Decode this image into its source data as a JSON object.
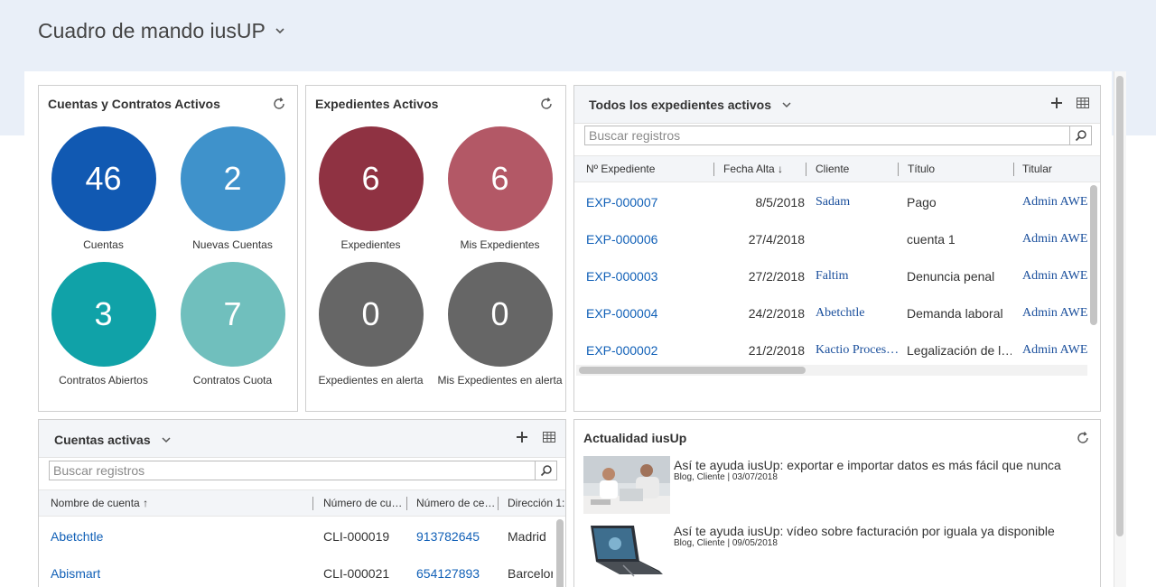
{
  "header": {
    "title": "Cuadro de mando iusUP"
  },
  "colors": {
    "cuentas": "#1159b2",
    "nuevas_cuentas": "#3f92cb",
    "contratos_abiertos": "#10a2a8",
    "contratos_cuota": "#70bfbd",
    "expedientes": "#8f3242",
    "mis_expedientes": "#b35866",
    "alerta": "#666666",
    "link": "#1160b7"
  },
  "cuentas_panel": {
    "title": "Cuentas y Contratos Activos",
    "tiles": [
      {
        "value": "46",
        "label": "Cuentas"
      },
      {
        "value": "2",
        "label": "Nuevas Cuentas"
      },
      {
        "value": "3",
        "label": "Contratos Abiertos"
      },
      {
        "value": "7",
        "label": "Contratos Cuota"
      }
    ]
  },
  "expedientes_panel": {
    "title": "Expedientes Activos",
    "tiles": [
      {
        "value": "6",
        "label": "Expedientes"
      },
      {
        "value": "6",
        "label": "Mis Expedientes"
      },
      {
        "value": "0",
        "label": "Expedientes en alerta"
      },
      {
        "value": "0",
        "label": "Mis Expedientes en alerta"
      }
    ]
  },
  "expedientes_view": {
    "title": "Todos los expedientes activos",
    "search_placeholder": "Buscar registros",
    "columns": [
      "Nº Expediente",
      "Fecha Alta",
      "Cliente",
      "Título",
      "Titular"
    ],
    "rows": [
      {
        "id": "EXP-000007",
        "fecha": "8/5/2018",
        "cliente": "Sadam",
        "titulo": "Pago",
        "titular": "Admin AWE"
      },
      {
        "id": "EXP-000006",
        "fecha": "27/4/2018",
        "cliente": "",
        "titulo": "cuenta 1",
        "titular": "Admin AWE"
      },
      {
        "id": "EXP-000003",
        "fecha": "27/2/2018",
        "cliente": "Faltim",
        "titulo": "Denuncia penal",
        "titular": "Admin AWE"
      },
      {
        "id": "EXP-000004",
        "fecha": "24/2/2018",
        "cliente": "Abetchtle",
        "titulo": "Demanda laboral",
        "titular": "Admin AWE"
      },
      {
        "id": "EXP-000002",
        "fecha": "21/2/2018",
        "cliente": "Kactio Proces…",
        "titulo": "Legalización de l…",
        "titular": "Admin AWE"
      }
    ]
  },
  "cuentas_view": {
    "title": "Cuentas activas",
    "search_placeholder": "Buscar registros",
    "columns": [
      "Nombre de cuenta",
      "Número de cu…",
      "Número de ce…",
      "Dirección 1:"
    ],
    "rows": [
      {
        "nombre": "Abetchtle",
        "numero": "CLI-000019",
        "telefono": "913782645",
        "direccion": "Madrid"
      },
      {
        "nombre": "Abismart",
        "numero": "CLI-000021",
        "telefono": "654127893",
        "direccion": "Barcelor"
      }
    ]
  },
  "news_panel": {
    "title": "Actualidad iusUp",
    "items": [
      {
        "title": "Así te ayuda iusUp: exportar e importar datos es más fácil que nunca",
        "meta": "Blog, Cliente | 03/07/2018"
      },
      {
        "title": "Así te ayuda iusUp: vídeo sobre facturación por iguala ya disponible",
        "meta": "Blog, Cliente | 09/05/2018"
      }
    ]
  }
}
